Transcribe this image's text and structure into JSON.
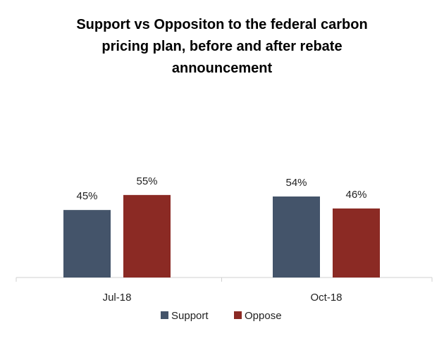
{
  "chart_data": {
    "type": "bar",
    "title": "Support vs Oppositon to the federal carbon\npricing plan, before and after rebate\nannouncement",
    "categories": [
      "Jul-18",
      "Oct-18"
    ],
    "series": [
      {
        "name": "Support",
        "values": [
          45,
          54
        ],
        "labels": [
          "45%",
          "54%"
        ],
        "color": "#44546a"
      },
      {
        "name": "Oppose",
        "values": [
          55,
          46
        ],
        "labels": [
          "55%",
          "46%"
        ],
        "color": "#8b2a24"
      }
    ],
    "ylim": [
      0,
      100
    ],
    "grid": false,
    "legend": "bottom",
    "xlabel": "",
    "ylabel": ""
  }
}
